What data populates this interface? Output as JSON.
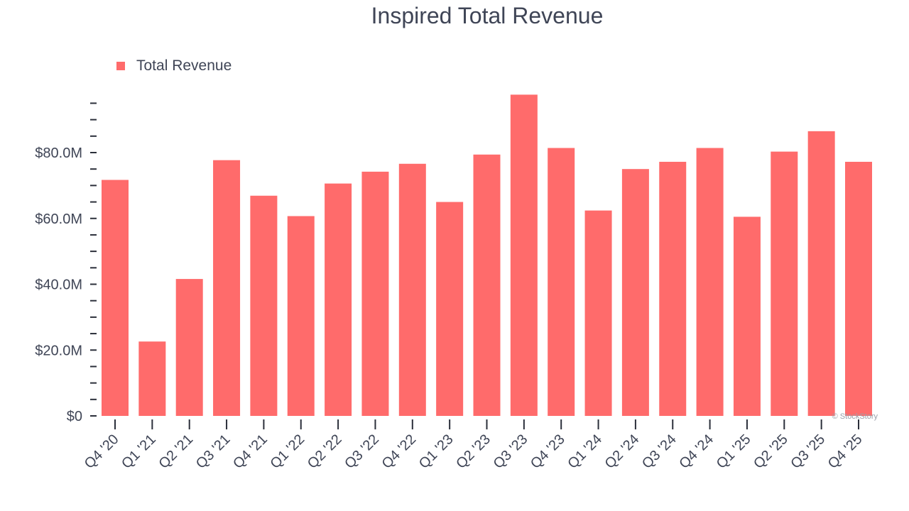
{
  "chart_data": {
    "type": "bar",
    "title": "Inspired Total Revenue",
    "categories": [
      "Q4 '20",
      "Q1 '21",
      "Q2 '21",
      "Q3 '21",
      "Q4 '21",
      "Q1 '22",
      "Q2 '22",
      "Q3 '22",
      "Q4 '22",
      "Q1 '23",
      "Q2 '23",
      "Q3 '23",
      "Q4 '23",
      "Q1 '24",
      "Q2 '24",
      "Q3 '24",
      "Q4 '24",
      "Q1 '25",
      "Q2 '25",
      "Q3 '25",
      "Q4 '25"
    ],
    "series": [
      {
        "name": "Total Revenue",
        "color": "#ff6b6b",
        "values": [
          71.7,
          22.6,
          41.6,
          77.7,
          66.9,
          60.7,
          70.6,
          74.2,
          76.6,
          65.0,
          79.4,
          97.6,
          81.4,
          62.4,
          75.0,
          77.2,
          81.4,
          60.5,
          80.3,
          86.5,
          77.2
        ]
      }
    ],
    "yticks": [
      {
        "value": 0,
        "label": "$0"
      },
      {
        "value": 20,
        "label": "$20.0M"
      },
      {
        "value": 40,
        "label": "$40.0M"
      },
      {
        "value": 60,
        "label": "$60.0M"
      },
      {
        "value": 80,
        "label": "$80.0M"
      }
    ],
    "minor_step": 5,
    "ylim": [
      0,
      100
    ],
    "legend_position": "top-left",
    "grid": false,
    "xlabel": "",
    "ylabel": "",
    "watermark": "© StockStory"
  }
}
